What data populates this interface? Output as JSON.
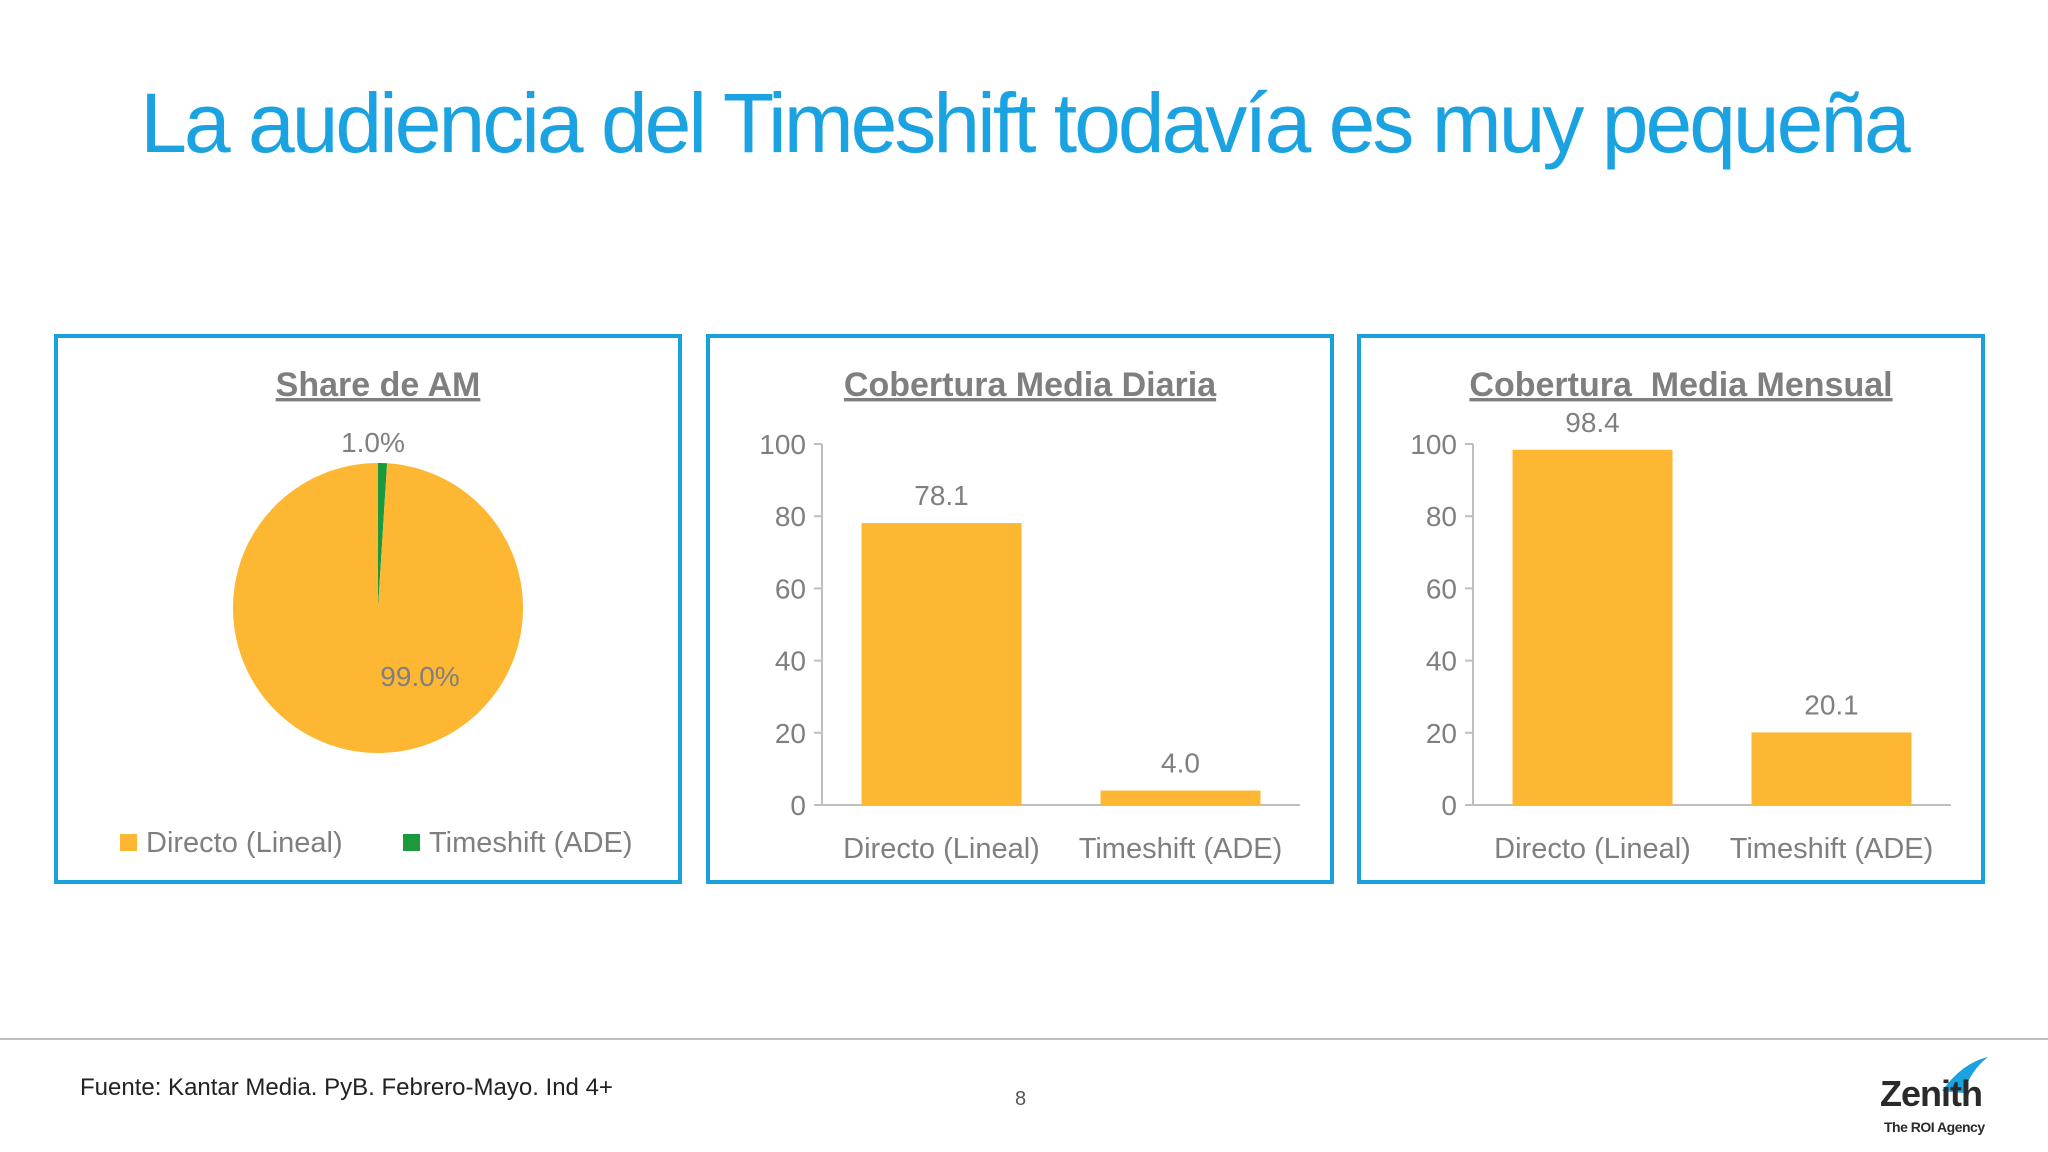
{
  "slide": {
    "title": "La audiencia del Timeshift todavía es muy pequeña",
    "source": "Fuente: Kantar Media. PyB. Febrero-Mayo. Ind 4+",
    "page_number": "8",
    "logo": {
      "name": "Zenith",
      "tagline": "The ROI Agency"
    }
  },
  "colors": {
    "directo": "#FDB733",
    "timeshift": "#1A9A3C",
    "title": "#1AA3E0",
    "border": "#17A2DC",
    "text": "#7F7F7F"
  },
  "chart_data": [
    {
      "type": "pie",
      "title": "Share de AM",
      "categories": [
        "Directo (Lineal)",
        "Timeshift (ADE)"
      ],
      "values": [
        99.0,
        1.0
      ],
      "data_labels": [
        "99.0%",
        "1.0%"
      ],
      "legend": "bottom"
    },
    {
      "type": "bar",
      "title": "Cobertura Media Diaria",
      "categories": [
        "Directo (Lineal)",
        "Timeshift (ADE)"
      ],
      "values": [
        78.1,
        4.0
      ],
      "data_labels": [
        "78.1",
        "4.0"
      ],
      "ylim": [
        0,
        100
      ],
      "yticks": [
        "0",
        "20",
        "40",
        "60",
        "80",
        "100"
      ],
      "grid": false
    },
    {
      "type": "bar",
      "title": "Cobertura  Media Mensual",
      "categories": [
        "Directo (Lineal)",
        "Timeshift (ADE)"
      ],
      "values": [
        98.4,
        20.1
      ],
      "data_labels": [
        "98.4",
        "20.1"
      ],
      "ylim": [
        0,
        100
      ],
      "yticks": [
        "0",
        "20",
        "40",
        "60",
        "80",
        "100"
      ],
      "grid": false
    }
  ]
}
